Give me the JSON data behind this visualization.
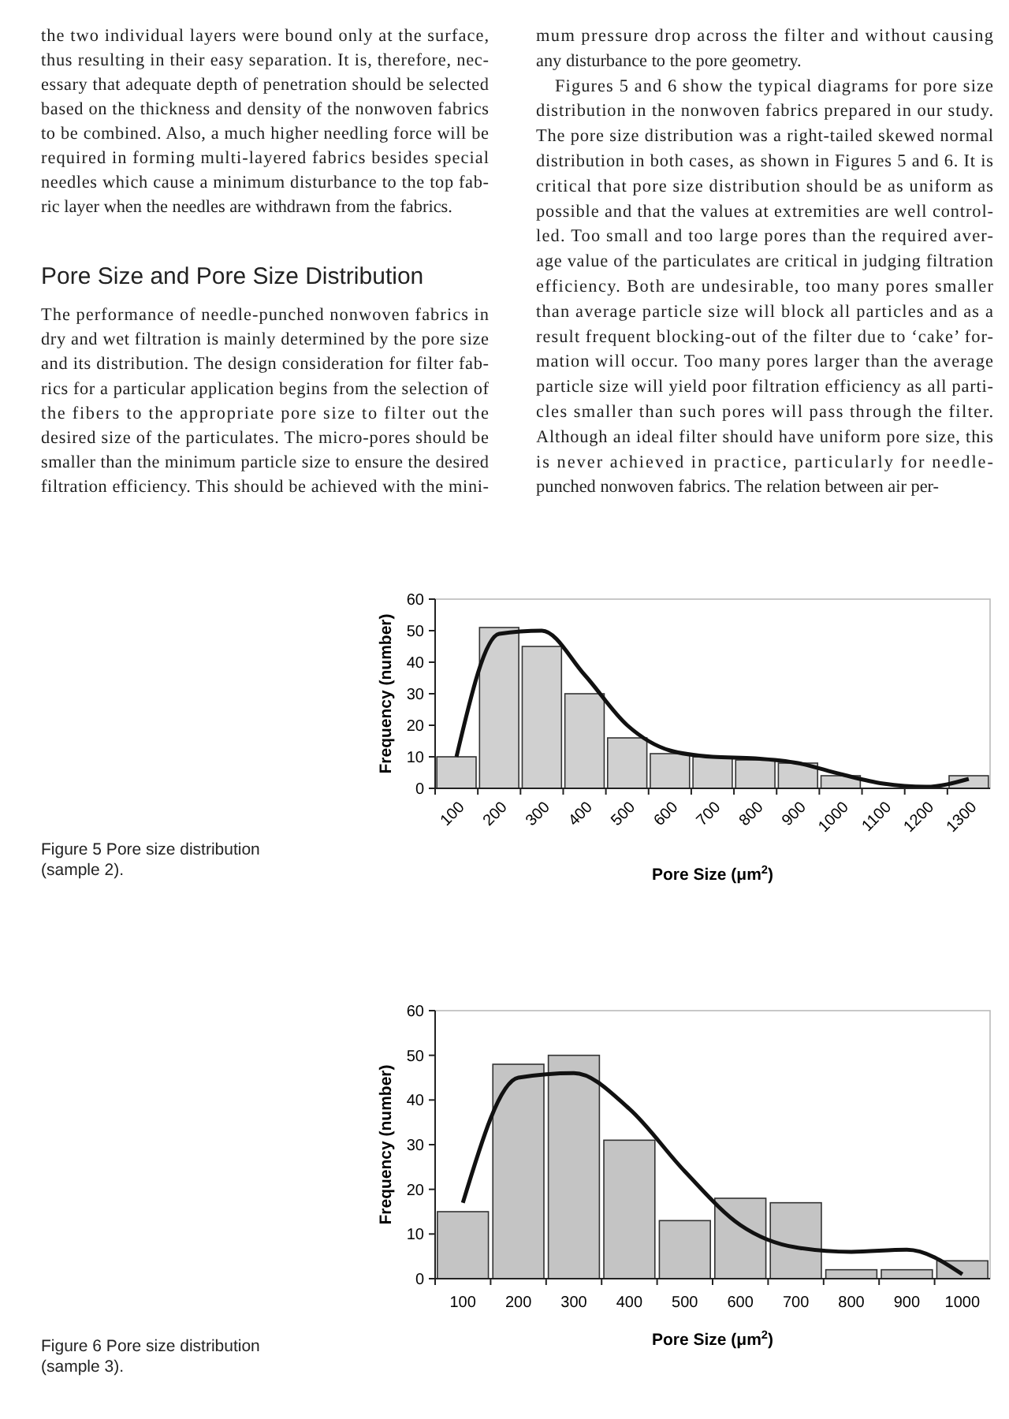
{
  "chart_data": [
    {
      "type": "bar",
      "xlabel": "Pore Size (μm$^{2}$)",
      "ylabel": "Frequency (number)",
      "categories": [
        "100",
        "200",
        "300",
        "400",
        "500",
        "600",
        "700",
        "800",
        "900",
        "1000",
        "1100",
        "1200",
        "1300"
      ],
      "series": [
        {
          "color": "#d0d0d0",
          "values": [
            10,
            51,
            45,
            30,
            16,
            11,
            10,
            9,
            8,
            4,
            null,
            null,
            4
          ]
        },
        {
          "type": "line",
          "color": "#111111",
          "values": [
            10,
            49,
            50,
            36,
            20,
            12,
            10,
            9.5,
            8,
            4.5,
            1.5,
            0.5,
            3
          ]
        }
      ],
      "ylim": [
        0,
        60
      ],
      "yticks": [
        0,
        10,
        20,
        30,
        40,
        50,
        60
      ],
      "annotations": [
        "the two individual layers were bound only at the surface,",
        "thus resulting in their easy separation. It is, therefore, nec-",
        "essary that adequate depth of penetration should be selected",
        "based on the thickness and density of the nonwoven fabrics",
        "to be combined. Also, a much higher needling force will be",
        "required in forming multi-layered fabrics besides special",
        "needles which cause a minimum disturbance to the top fab-",
        "ric layer when the needles are withdrawn from the fabrics.",
        "Pore Size and Pore Size Distribution",
        "The performance of needle-punched nonwoven fabrics in",
        "dry and wet filtration is mainly determined by the pore size",
        "and its distribution. The design consideration for filter fab-",
        "rics for a particular application begins from the selection of",
        "the fibers to the appropriate pore size to filter out the",
        "desired size of the particulates. The micro-pores should be",
        "smaller than the minimum particle size to ensure the desired",
        "filtration efficiency. This should be achieved with the mini-",
        "mum pressure drop across the filter and without causing",
        "any disturbance to the pore geometry.",
        "Figures 5 and 6 show the typical diagrams for pore size",
        "distribution in the nonwoven fabrics prepared in our study.",
        "The pore size distribution was a right-tailed skewed normal",
        "distribution in both cases, as shown in Figures 5 and 6. It is",
        "critical that pore size distribution should be as uniform as",
        "possible and that the values at extremities are well control-",
        "led. Too small and too large pores than the required aver-",
        "age value of the particulates are critical in judging filtration",
        "efficiency. Both are undesirable, too many pores smaller",
        "than average particle size will block all particles and as a",
        "result frequent blocking-out of the filter due to ‘cake’ for-",
        "mation will occur. Too many pores larger than the average",
        "particle size will yield poor filtration efficiency as all parti-",
        "cles smaller than such pores will pass through the filter.",
        "Although an ideal filter should have uniform pore size, this",
        "is never achieved in practice, particularly for needle-",
        "punched nonwoven fabrics. The relation between air per-",
        "Figure 5 Pore size distribution (sample 2)."
      ]
    },
    {
      "type": "bar",
      "annotations": [
        "Figure 6 Pore size distribution (sample 3)."
      ],
      "xlabel": "Pore Size (μm$^{2}$)",
      "ylabel": "Frequency (number)",
      "categories": [
        "100",
        "200",
        "300",
        "400",
        "500",
        "600",
        "700",
        "800",
        "900",
        "1000"
      ],
      "series": [
        {
          "color": "#c4c4c4",
          "values": [
            15,
            48,
            50,
            31,
            13,
            18,
            17,
            2,
            2,
            4
          ]
        },
        {
          "type": "line",
          "color": "#111111",
          "values": [
            17,
            45,
            46,
            38,
            24,
            12,
            7,
            6,
            6.5,
            1
          ]
        }
      ],
      "ylim": [
        0,
        60
      ],
      "yticks": [
        0,
        10,
        20,
        30,
        40,
        50,
        60
      ]
    }
  ]
}
